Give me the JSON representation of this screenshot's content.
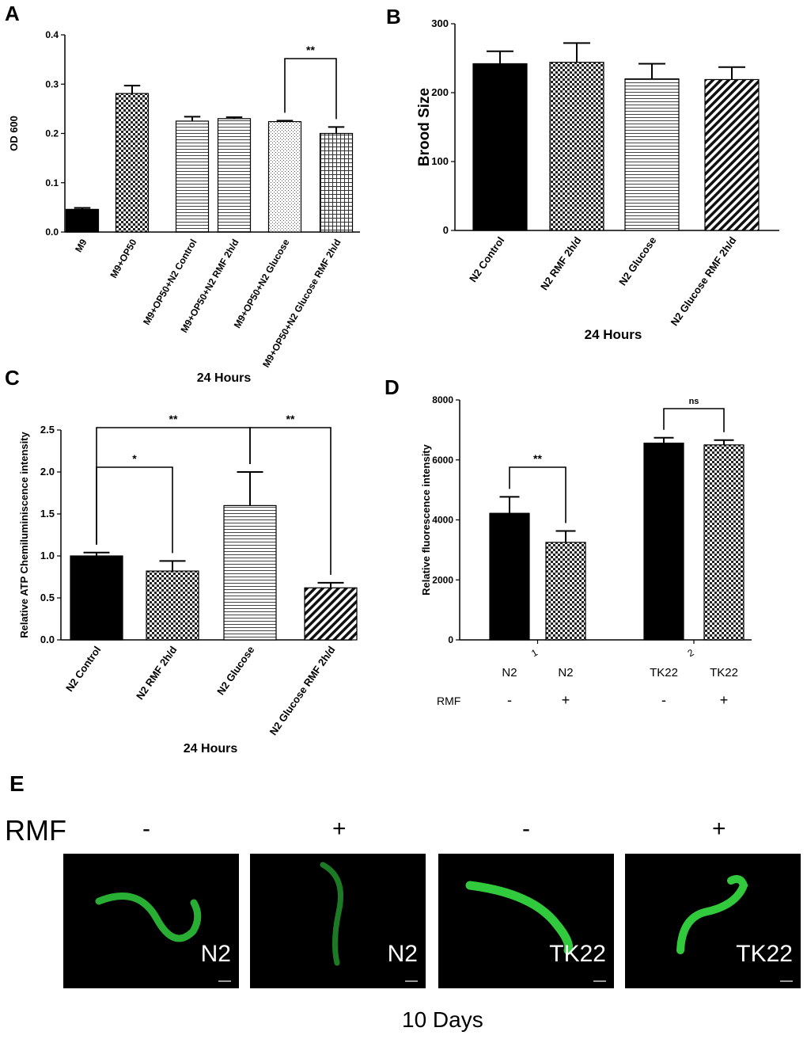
{
  "panels": {
    "a": {
      "letter": "A"
    },
    "b": {
      "letter": "B"
    },
    "c": {
      "letter": "C"
    },
    "d": {
      "letter": "D"
    },
    "e": {
      "letter": "E"
    }
  },
  "chart_data": [
    {
      "id": "A",
      "type": "bar",
      "title": "",
      "xlabel": "24 Hours",
      "ylabel": "OD 600",
      "ylim": [
        0,
        0.4
      ],
      "yticks": [
        "0.0",
        "0.1",
        "0.2",
        "0.3",
        "0.4"
      ],
      "grid": false,
      "categories": [
        "M9",
        "M9+OP50",
        "M9+OP50+N2 Control",
        "M9+OP50+N2 RMF 2h/d",
        "M9+OP50+N2 Glucose",
        "M9+OP50+N2 Glucose RMF 2h/d"
      ],
      "values": [
        0.046,
        0.281,
        0.225,
        0.23,
        0.224,
        0.2
      ],
      "errors": [
        0.003,
        0.016,
        0.009,
        0.003,
        0.002,
        0.013
      ],
      "patterns": [
        "solid",
        "checker",
        "hlines",
        "hlines",
        "fine",
        "grid"
      ],
      "annotations": [
        {
          "from": 4,
          "to": 5,
          "text": "**"
        }
      ]
    },
    {
      "id": "B",
      "type": "bar",
      "title": "",
      "xlabel": "24 Hours",
      "ylabel": "Brood Size",
      "ylim": [
        0,
        300
      ],
      "yticks": [
        "0",
        "100",
        "200",
        "300"
      ],
      "grid": false,
      "categories": [
        "N2 Control",
        "N2 RMF 2h/d",
        "N2 Glucose",
        "N2 Glucose RMF 2h/d"
      ],
      "values": [
        242,
        244,
        220,
        219
      ],
      "errors": [
        18,
        28,
        22,
        18
      ],
      "patterns": [
        "solid",
        "checker",
        "hlines",
        "diag"
      ],
      "annotations": []
    },
    {
      "id": "C",
      "type": "bar",
      "title": "",
      "xlabel": "24 Hours",
      "ylabel": "Relative ATP  Chemiluminiscence intensity",
      "ylim": [
        0,
        2.5
      ],
      "yticks": [
        "0.0",
        "0.5",
        "1.0",
        "1.5",
        "2.0",
        "2.5"
      ],
      "grid": false,
      "categories": [
        "N2 Control",
        "N2 RMF 2h/d",
        "N2 Glucose",
        "N2 Glucose RMF 2h/d"
      ],
      "values": [
        1.0,
        0.82,
        1.6,
        0.62
      ],
      "errors": [
        0.04,
        0.12,
        0.4,
        0.06
      ],
      "patterns": [
        "solid",
        "checker",
        "hlines",
        "diag"
      ],
      "annotations": [
        {
          "from": 0,
          "to": 1,
          "text": "*"
        },
        {
          "from": 0,
          "to": 2,
          "text": "**"
        },
        {
          "from": 2,
          "to": 3,
          "text": "**"
        }
      ]
    },
    {
      "id": "D",
      "type": "bar",
      "title": "",
      "xlabel": "",
      "ylabel": "Relative fluorescence intensity",
      "ylim": [
        0,
        8000
      ],
      "yticks": [
        "0",
        "2000",
        "4000",
        "6000",
        "8000"
      ],
      "grid": false,
      "group_ticks": [
        "1",
        "2"
      ],
      "categories": [
        "N2",
        "N2",
        "TK22",
        "TK22"
      ],
      "rmf_label": "RMF",
      "rmf": [
        "-",
        "+",
        "-",
        "+"
      ],
      "values": [
        4220,
        3250,
        6560,
        6500
      ],
      "errors": [
        550,
        380,
        180,
        160
      ],
      "patterns": [
        "solid",
        "checker",
        "solid",
        "checker"
      ],
      "annotations": [
        {
          "from": 0,
          "to": 1,
          "text": "**"
        },
        {
          "from": 2,
          "to": 3,
          "text": "ns"
        }
      ]
    }
  ],
  "panel_e": {
    "rmf_label": "RMF",
    "signs": [
      "-",
      "+",
      "-",
      "+"
    ],
    "images": [
      {
        "label": "N2",
        "icon": "worm-micrograph"
      },
      {
        "label": "N2",
        "icon": "worm-micrograph"
      },
      {
        "label": "TK22",
        "icon": "worm-micrograph"
      },
      {
        "label": "TK22",
        "icon": "worm-micrograph"
      }
    ],
    "caption": "10 Days"
  }
}
